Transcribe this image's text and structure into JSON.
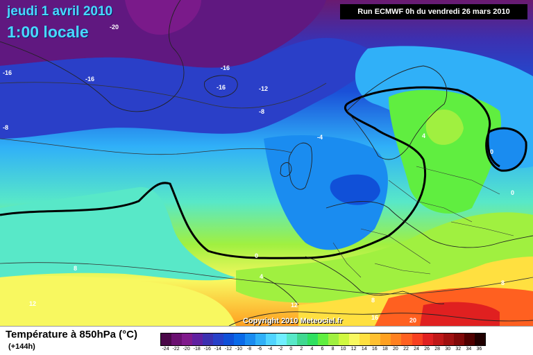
{
  "header": {
    "date_title": "jeudi 1 avril 2010",
    "time_title": "1:00 locale",
    "run_info": "Run ECMWF 0h du vendredi 26 mars 2010"
  },
  "footer": {
    "map_title": "Température à 850hPa (°C)",
    "forecast_step": "(+144h)",
    "copyright": "Copyright 2010 Meteociel.fr"
  },
  "legend": {
    "labels": [
      "-24",
      "-22",
      "-20",
      "-18",
      "-16",
      "-14",
      "-12",
      "-10",
      "-8",
      "-6",
      "-4",
      "-2",
      "0",
      "2",
      "4",
      "6",
      "8",
      "10",
      "12",
      "14",
      "16",
      "18",
      "20",
      "22",
      "24",
      "26",
      "28",
      "30",
      "32",
      "34",
      "36"
    ],
    "colors": [
      "#4a0848",
      "#6a1070",
      "#801a8c",
      "#6020a0",
      "#3c30b0",
      "#2840c8",
      "#1050d8",
      "#0a6ae8",
      "#1a8cf0",
      "#30b0f8",
      "#50d4ff",
      "#70eeff",
      "#58e8c8",
      "#40d890",
      "#30e060",
      "#60ee40",
      "#a0f040",
      "#d0f840",
      "#f8f860",
      "#ffe040",
      "#ffc030",
      "#ffa020",
      "#ff8020",
      "#ff6020",
      "#f84020",
      "#e02020",
      "#c01818",
      "#a01010",
      "#800808",
      "#500000",
      "#200000"
    ]
  },
  "map_labels": [
    {
      "text": "-20"
    },
    {
      "text": "-16"
    },
    {
      "text": "-16"
    },
    {
      "text": "-16"
    },
    {
      "text": "-16"
    },
    {
      "text": "-12"
    },
    {
      "text": "-8"
    },
    {
      "text": "-8"
    },
    {
      "text": "-4"
    },
    {
      "text": "4"
    },
    {
      "text": "0"
    },
    {
      "text": "0"
    },
    {
      "text": "0"
    },
    {
      "text": "4"
    },
    {
      "text": "8"
    },
    {
      "text": "12"
    },
    {
      "text": "12"
    },
    {
      "text": "8"
    },
    {
      "text": "16"
    },
    {
      "text": "20"
    },
    {
      "text": "8"
    }
  ]
}
